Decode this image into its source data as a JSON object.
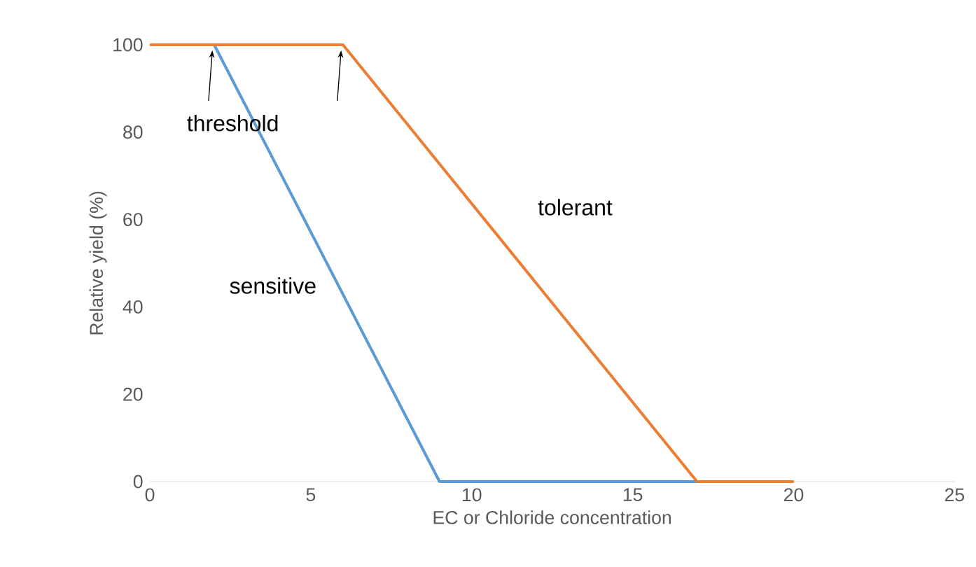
{
  "chart_data": {
    "type": "line",
    "xlabel": "EC or Chloride concentration",
    "ylabel": "Relative yield (%)",
    "annotations": [
      {
        "text": "threshold",
        "x": 2,
        "y": 100
      }
    ],
    "xlim": [
      0,
      25
    ],
    "xticks": [
      0,
      5,
      10,
      15,
      20,
      25
    ],
    "ylim": [
      0,
      100
    ],
    "yticks": [
      0,
      20,
      40,
      60,
      80,
      100
    ],
    "grid": false,
    "series": [
      {
        "name": "sensitive",
        "color": "#5b9bd5",
        "x": [
          0,
          2,
          9,
          20
        ],
        "values": [
          100,
          100,
          0,
          0
        ]
      },
      {
        "name": "tolerant",
        "color": "#ed7d31",
        "x": [
          0,
          6,
          17,
          20
        ],
        "values": [
          100,
          100,
          0,
          0
        ]
      }
    ]
  }
}
